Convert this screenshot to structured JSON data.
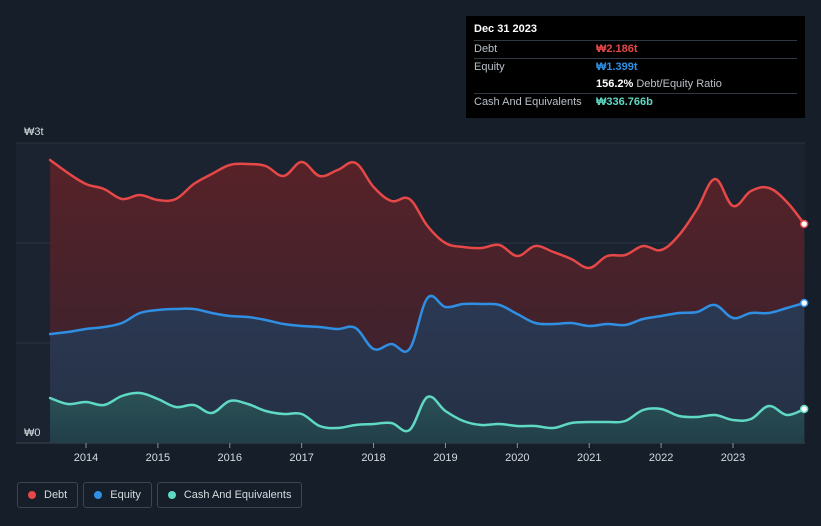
{
  "tooltip": {
    "date": "Dec 31 2023",
    "debt_label": "Debt",
    "debt_value": "₩2.186t",
    "equity_label": "Equity",
    "equity_value": "₩1.399t",
    "ratio_value": "156.2%",
    "ratio_label": "Debt/Equity Ratio",
    "cash_label": "Cash And Equivalents",
    "cash_value": "₩336.766b"
  },
  "legend": {
    "debt": "Debt",
    "equity": "Equity",
    "cash": "Cash And Equivalents"
  },
  "colors": {
    "debt": "#e64848",
    "equity": "#2f8fe3",
    "cash": "#5fd9c4",
    "background": "#151e29"
  },
  "chart_data": {
    "type": "area",
    "title": "",
    "xlabel": "",
    "ylabel": "",
    "ylim": [
      0,
      3
    ],
    "y_unit": "₩ trillion",
    "y_tick_labels": [
      "₩0",
      "₩3t"
    ],
    "x_tick_labels": [
      "2014",
      "2015",
      "2016",
      "2017",
      "2018",
      "2019",
      "2020",
      "2021",
      "2022",
      "2023"
    ],
    "x": [
      2013.5,
      2013.75,
      2014.0,
      2014.25,
      2014.5,
      2014.75,
      2015.0,
      2015.25,
      2015.5,
      2015.75,
      2016.0,
      2016.25,
      2016.5,
      2016.75,
      2017.0,
      2017.25,
      2017.5,
      2017.75,
      2018.0,
      2018.25,
      2018.5,
      2018.75,
      2019.0,
      2019.25,
      2019.5,
      2019.75,
      2020.0,
      2020.25,
      2020.5,
      2020.75,
      2021.0,
      2021.25,
      2021.5,
      2021.75,
      2022.0,
      2022.25,
      2022.5,
      2022.75,
      2023.0,
      2023.25,
      2023.5,
      2023.75,
      2023.99
    ],
    "series": [
      {
        "name": "Debt",
        "values": [
          2.83,
          2.7,
          2.59,
          2.54,
          2.44,
          2.48,
          2.43,
          2.44,
          2.59,
          2.69,
          2.78,
          2.79,
          2.77,
          2.67,
          2.81,
          2.67,
          2.73,
          2.8,
          2.56,
          2.42,
          2.44,
          2.17,
          2.0,
          1.96,
          1.95,
          1.98,
          1.87,
          1.97,
          1.91,
          1.84,
          1.75,
          1.87,
          1.88,
          1.97,
          1.93,
          2.08,
          2.34,
          2.64,
          2.37,
          2.52,
          2.55,
          2.41,
          2.19
        ]
      },
      {
        "name": "Equity",
        "values": [
          1.09,
          1.11,
          1.14,
          1.16,
          1.2,
          1.3,
          1.33,
          1.34,
          1.34,
          1.3,
          1.27,
          1.26,
          1.23,
          1.19,
          1.17,
          1.16,
          1.14,
          1.15,
          0.94,
          0.99,
          0.94,
          1.45,
          1.36,
          1.39,
          1.39,
          1.38,
          1.29,
          1.2,
          1.19,
          1.2,
          1.17,
          1.19,
          1.18,
          1.24,
          1.27,
          1.3,
          1.31,
          1.38,
          1.25,
          1.3,
          1.3,
          1.35,
          1.4
        ]
      },
      {
        "name": "Cash And Equivalents",
        "values": [
          0.45,
          0.39,
          0.41,
          0.38,
          0.47,
          0.5,
          0.44,
          0.36,
          0.38,
          0.3,
          0.42,
          0.39,
          0.32,
          0.29,
          0.29,
          0.17,
          0.15,
          0.18,
          0.19,
          0.2,
          0.13,
          0.46,
          0.32,
          0.22,
          0.18,
          0.19,
          0.17,
          0.17,
          0.15,
          0.2,
          0.21,
          0.21,
          0.22,
          0.33,
          0.34,
          0.27,
          0.26,
          0.28,
          0.23,
          0.24,
          0.37,
          0.28,
          0.34
        ]
      }
    ]
  }
}
